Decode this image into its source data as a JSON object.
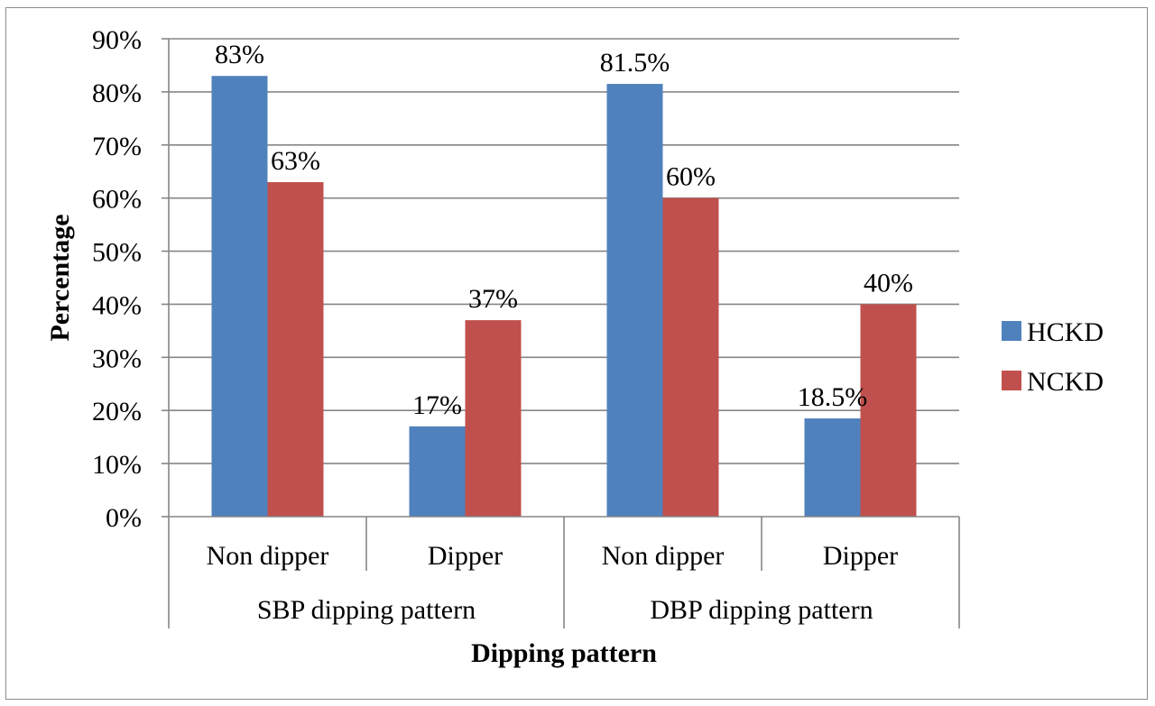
{
  "chart_data": {
    "type": "bar",
    "categories": [
      "Non dipper",
      "Dipper",
      "Non dipper",
      "Dipper"
    ],
    "groups": [
      {
        "label": "SBP dipping pattern",
        "span": [
          0,
          1
        ]
      },
      {
        "label": "DBP dipping pattern",
        "span": [
          2,
          3
        ]
      }
    ],
    "series": [
      {
        "name": "HCKD",
        "color": "#4f81bd",
        "values": [
          83,
          17,
          81.5,
          18.5
        ],
        "labels": [
          "83%",
          "17%",
          "81.5%",
          "18.5%"
        ]
      },
      {
        "name": "NCKD",
        "color": "#c0504d",
        "values": [
          63,
          37,
          60,
          40
        ],
        "labels": [
          "63%",
          "37%",
          "60%",
          "40%"
        ]
      }
    ],
    "ylim": [
      0,
      90
    ],
    "yticks": [
      0,
      10,
      20,
      30,
      40,
      50,
      60,
      70,
      80,
      90
    ],
    "ytick_labels": [
      "0%",
      "10%",
      "20%",
      "30%",
      "40%",
      "50%",
      "60%",
      "70%",
      "80%",
      "90%"
    ],
    "xlabel": "Dipping pattern",
    "ylabel": "Percentage",
    "grid": true,
    "legend_position": "right"
  }
}
